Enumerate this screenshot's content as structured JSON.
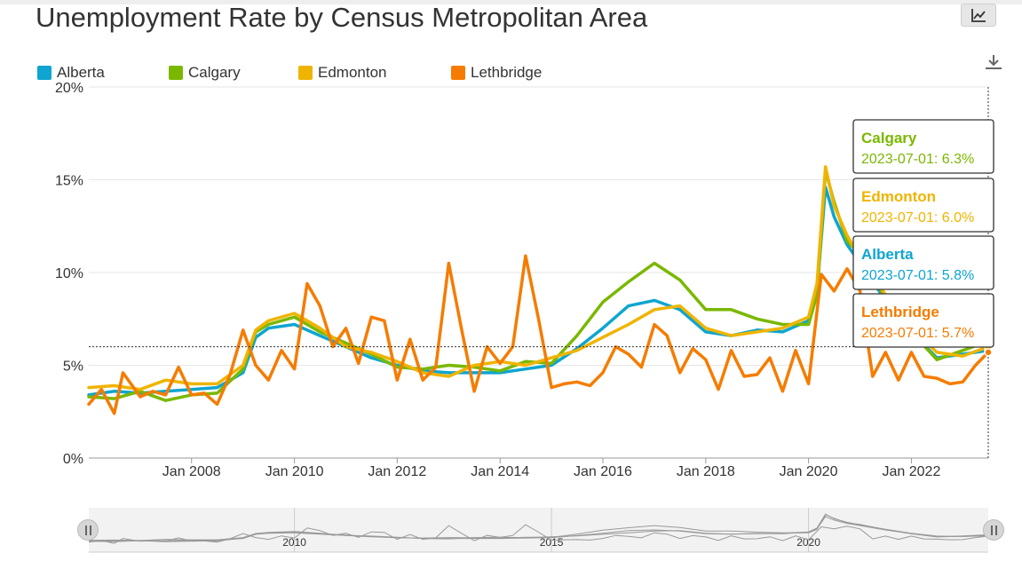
{
  "title": "Unemployment Rate by Census Metropolitan Area",
  "toolbar": {
    "chart_type_icon": "line-chart-icon",
    "download_icon": "download-icon"
  },
  "legend": [
    {
      "name": "Alberta",
      "color": "#0ea5d0"
    },
    {
      "name": "Calgary",
      "color": "#7ab800"
    },
    {
      "name": "Edmonton",
      "color": "#f0b400"
    },
    {
      "name": "Lethbridge",
      "color": "#f57c00"
    }
  ],
  "tooltips": [
    {
      "series": "Calgary",
      "text": "2023-07-01: 6.3%",
      "color": "#7ab800"
    },
    {
      "series": "Edmonton",
      "text": "2023-07-01: 6.0%",
      "color": "#f0b400"
    },
    {
      "series": "Alberta",
      "text": "2023-07-01: 5.8%",
      "color": "#0ea5d0"
    },
    {
      "series": "Lethbridge",
      "text": "2023-07-01: 5.7%",
      "color": "#f57c00"
    }
  ],
  "navigator": {
    "labels": [
      "2010",
      "2015",
      "2020"
    ]
  },
  "chart_data": {
    "type": "line",
    "title": "Unemployment Rate by Census Metropolitan Area",
    "xlabel": "",
    "ylabel": "",
    "x_ticks": [
      "Jan 2008",
      "Jan 2010",
      "Jan 2012",
      "Jan 2014",
      "Jan 2016",
      "Jan 2018",
      "Jan 2020",
      "Jan 2022"
    ],
    "y_ticks": [
      "0%",
      "5%",
      "10%",
      "15%",
      "20%"
    ],
    "ylim": [
      0,
      20
    ],
    "xlim": [
      "2006-01-01",
      "2023-07-01"
    ],
    "grid": true,
    "legend_position": "top-left",
    "series": [
      {
        "name": "Alberta",
        "color": "#0ea5d0",
        "points": [
          [
            "2006-01-01",
            3.4
          ],
          [
            "2006-07-01",
            3.6
          ],
          [
            "2007-01-01",
            3.5
          ],
          [
            "2007-07-01",
            3.6
          ],
          [
            "2008-01-01",
            3.7
          ],
          [
            "2008-07-01",
            3.8
          ],
          [
            "2009-01-01",
            4.6
          ],
          [
            "2009-04-01",
            6.5
          ],
          [
            "2009-07-01",
            7.0
          ],
          [
            "2010-01-01",
            7.2
          ],
          [
            "2010-07-01",
            6.6
          ],
          [
            "2011-01-01",
            6.0
          ],
          [
            "2011-07-01",
            5.4
          ],
          [
            "2012-01-01",
            5.0
          ],
          [
            "2012-07-01",
            4.7
          ],
          [
            "2013-01-01",
            4.6
          ],
          [
            "2013-07-01",
            4.6
          ],
          [
            "2014-01-01",
            4.6
          ],
          [
            "2014-07-01",
            4.8
          ],
          [
            "2015-01-01",
            5.0
          ],
          [
            "2015-07-01",
            5.9
          ],
          [
            "2016-01-01",
            7.0
          ],
          [
            "2016-07-01",
            8.2
          ],
          [
            "2017-01-01",
            8.5
          ],
          [
            "2017-07-01",
            8.0
          ],
          [
            "2018-01-01",
            6.8
          ],
          [
            "2018-07-01",
            6.6
          ],
          [
            "2019-01-01",
            6.9
          ],
          [
            "2019-07-01",
            6.8
          ],
          [
            "2020-01-01",
            7.4
          ],
          [
            "2020-03-01",
            9.0
          ],
          [
            "2020-05-01",
            14.6
          ],
          [
            "2020-07-01",
            13.0
          ],
          [
            "2020-10-01",
            11.5
          ],
          [
            "2021-01-01",
            10.5
          ],
          [
            "2021-07-01",
            8.5
          ],
          [
            "2022-01-01",
            6.8
          ],
          [
            "2022-07-01",
            5.4
          ],
          [
            "2023-01-01",
            5.6
          ],
          [
            "2023-07-01",
            5.8
          ]
        ]
      },
      {
        "name": "Calgary",
        "color": "#7ab800",
        "points": [
          [
            "2006-01-01",
            3.3
          ],
          [
            "2006-07-01",
            3.2
          ],
          [
            "2007-01-01",
            3.6
          ],
          [
            "2007-07-01",
            3.1
          ],
          [
            "2008-01-01",
            3.4
          ],
          [
            "2008-07-01",
            3.5
          ],
          [
            "2009-01-01",
            4.8
          ],
          [
            "2009-04-01",
            6.8
          ],
          [
            "2009-07-01",
            7.2
          ],
          [
            "2010-01-01",
            7.6
          ],
          [
            "2010-07-01",
            6.8
          ],
          [
            "2011-01-01",
            6.2
          ],
          [
            "2011-07-01",
            5.6
          ],
          [
            "2012-01-01",
            4.9
          ],
          [
            "2012-07-01",
            4.8
          ],
          [
            "2013-01-01",
            5.0
          ],
          [
            "2013-07-01",
            4.9
          ],
          [
            "2014-01-01",
            4.7
          ],
          [
            "2014-07-01",
            5.2
          ],
          [
            "2015-01-01",
            5.1
          ],
          [
            "2015-07-01",
            6.6
          ],
          [
            "2016-01-01",
            8.4
          ],
          [
            "2016-07-01",
            9.5
          ],
          [
            "2017-01-01",
            10.5
          ],
          [
            "2017-07-01",
            9.6
          ],
          [
            "2018-01-01",
            8.0
          ],
          [
            "2018-07-01",
            8.0
          ],
          [
            "2019-01-01",
            7.5
          ],
          [
            "2019-07-01",
            7.2
          ],
          [
            "2020-01-01",
            7.2
          ],
          [
            "2020-03-01",
            8.8
          ],
          [
            "2020-05-01",
            15.5
          ],
          [
            "2020-07-01",
            13.8
          ],
          [
            "2020-10-01",
            11.7
          ],
          [
            "2021-01-01",
            11.0
          ],
          [
            "2021-07-01",
            8.6
          ],
          [
            "2022-01-01",
            6.8
          ],
          [
            "2022-07-01",
            5.3
          ],
          [
            "2023-01-01",
            5.8
          ],
          [
            "2023-07-01",
            6.3
          ]
        ]
      },
      {
        "name": "Edmonton",
        "color": "#f0b400",
        "points": [
          [
            "2006-01-01",
            3.8
          ],
          [
            "2006-07-01",
            3.9
          ],
          [
            "2007-01-01",
            3.7
          ],
          [
            "2007-07-01",
            4.2
          ],
          [
            "2008-01-01",
            4.0
          ],
          [
            "2008-07-01",
            4.0
          ],
          [
            "2009-01-01",
            5.0
          ],
          [
            "2009-04-01",
            6.9
          ],
          [
            "2009-07-01",
            7.4
          ],
          [
            "2010-01-01",
            7.8
          ],
          [
            "2010-07-01",
            7.0
          ],
          [
            "2011-01-01",
            6.0
          ],
          [
            "2011-07-01",
            5.7
          ],
          [
            "2012-01-01",
            5.2
          ],
          [
            "2012-07-01",
            4.6
          ],
          [
            "2013-01-01",
            4.4
          ],
          [
            "2013-07-01",
            5.0
          ],
          [
            "2014-01-01",
            5.2
          ],
          [
            "2014-07-01",
            5.0
          ],
          [
            "2015-01-01",
            5.4
          ],
          [
            "2015-07-01",
            5.8
          ],
          [
            "2016-01-01",
            6.5
          ],
          [
            "2016-07-01",
            7.2
          ],
          [
            "2017-01-01",
            8.0
          ],
          [
            "2017-07-01",
            8.2
          ],
          [
            "2018-01-01",
            7.0
          ],
          [
            "2018-07-01",
            6.6
          ],
          [
            "2019-01-01",
            6.8
          ],
          [
            "2019-07-01",
            7.0
          ],
          [
            "2020-01-01",
            7.6
          ],
          [
            "2020-03-01",
            9.4
          ],
          [
            "2020-05-01",
            15.7
          ],
          [
            "2020-07-01",
            13.6
          ],
          [
            "2020-10-01",
            12.0
          ],
          [
            "2021-01-01",
            10.8
          ],
          [
            "2021-07-01",
            8.8
          ],
          [
            "2022-01-01",
            7.0
          ],
          [
            "2022-07-01",
            5.7
          ],
          [
            "2023-01-01",
            5.5
          ],
          [
            "2023-07-01",
            6.0
          ]
        ]
      },
      {
        "name": "Lethbridge",
        "color": "#f57c00",
        "points": [
          [
            "2006-01-01",
            2.9
          ],
          [
            "2006-04-01",
            3.7
          ],
          [
            "2006-07-01",
            2.4
          ],
          [
            "2006-09-01",
            4.6
          ],
          [
            "2007-01-01",
            3.3
          ],
          [
            "2007-04-01",
            3.6
          ],
          [
            "2007-07-01",
            3.4
          ],
          [
            "2007-10-01",
            4.9
          ],
          [
            "2008-01-01",
            3.4
          ],
          [
            "2008-04-01",
            3.5
          ],
          [
            "2008-07-01",
            2.9
          ],
          [
            "2008-10-01",
            4.5
          ],
          [
            "2009-01-01",
            6.9
          ],
          [
            "2009-04-01",
            5.0
          ],
          [
            "2009-07-01",
            4.2
          ],
          [
            "2009-10-01",
            5.8
          ],
          [
            "2010-01-01",
            4.8
          ],
          [
            "2010-04-01",
            9.4
          ],
          [
            "2010-07-01",
            8.2
          ],
          [
            "2010-10-01",
            6.0
          ],
          [
            "2011-01-01",
            7.0
          ],
          [
            "2011-04-01",
            5.1
          ],
          [
            "2011-07-01",
            7.6
          ],
          [
            "2011-10-01",
            7.4
          ],
          [
            "2012-01-01",
            4.2
          ],
          [
            "2012-04-01",
            6.4
          ],
          [
            "2012-07-01",
            4.2
          ],
          [
            "2012-10-01",
            4.9
          ],
          [
            "2013-01-01",
            10.5
          ],
          [
            "2013-04-01",
            7.0
          ],
          [
            "2013-07-01",
            3.6
          ],
          [
            "2013-10-01",
            6.0
          ],
          [
            "2014-01-01",
            5.1
          ],
          [
            "2014-04-01",
            6.0
          ],
          [
            "2014-07-01",
            10.9
          ],
          [
            "2014-10-01",
            7.5
          ],
          [
            "2015-01-01",
            3.8
          ],
          [
            "2015-04-01",
            4.0
          ],
          [
            "2015-07-01",
            4.1
          ],
          [
            "2015-10-01",
            3.9
          ],
          [
            "2016-01-01",
            4.6
          ],
          [
            "2016-04-01",
            6.0
          ],
          [
            "2016-07-01",
            5.6
          ],
          [
            "2016-10-01",
            4.9
          ],
          [
            "2017-01-01",
            7.2
          ],
          [
            "2017-04-01",
            6.6
          ],
          [
            "2017-07-01",
            4.6
          ],
          [
            "2017-10-01",
            5.9
          ],
          [
            "2018-01-01",
            5.3
          ],
          [
            "2018-04-01",
            3.7
          ],
          [
            "2018-07-01",
            5.8
          ],
          [
            "2018-10-01",
            4.4
          ],
          [
            "2019-01-01",
            4.5
          ],
          [
            "2019-04-01",
            5.4
          ],
          [
            "2019-07-01",
            3.6
          ],
          [
            "2019-10-01",
            5.8
          ],
          [
            "2020-01-01",
            4.0
          ],
          [
            "2020-04-01",
            9.9
          ],
          [
            "2020-07-01",
            9.0
          ],
          [
            "2020-10-01",
            10.2
          ],
          [
            "2021-01-01",
            9.0
          ],
          [
            "2021-04-01",
            4.4
          ],
          [
            "2021-07-01",
            5.7
          ],
          [
            "2021-10-01",
            4.2
          ],
          [
            "2022-01-01",
            5.7
          ],
          [
            "2022-04-01",
            4.4
          ],
          [
            "2022-07-01",
            4.3
          ],
          [
            "2022-10-01",
            4.0
          ],
          [
            "2023-01-01",
            4.1
          ],
          [
            "2023-04-01",
            5.0
          ],
          [
            "2023-07-01",
            5.7
          ]
        ]
      }
    ]
  }
}
